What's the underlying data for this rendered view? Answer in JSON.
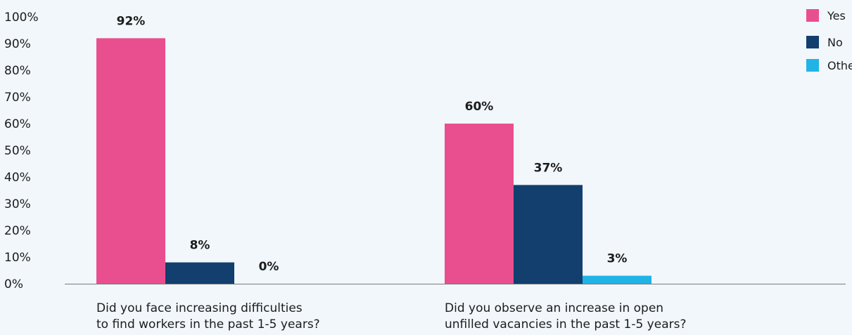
{
  "chart_data": {
    "type": "bar",
    "categories": [
      [
        "Did you face increasing difficulties",
        "to find workers in the past 1-5 years?"
      ],
      [
        "Did you observe an increase in open",
        "unfilled vacancies in the past 1-5 years?"
      ]
    ],
    "series": [
      {
        "name": "Yes",
        "values": [
          92,
          60
        ],
        "labels": [
          "92%",
          "60%"
        ],
        "color": "#e94f8e"
      },
      {
        "name": "No",
        "values": [
          8,
          37
        ],
        "labels": [
          "8%",
          "37%"
        ],
        "color": "#123f6d"
      },
      {
        "name": "Other",
        "values": [
          0,
          3
        ],
        "labels": [
          "0%",
          "3%"
        ],
        "color": "#20b4e6"
      }
    ],
    "ylim": [
      0,
      100
    ],
    "yticks": [
      0,
      10,
      20,
      30,
      40,
      50,
      60,
      70,
      80,
      90,
      100
    ],
    "ytick_labels": [
      "0%",
      "10%",
      "20%",
      "30%",
      "40%",
      "50%",
      "60%",
      "70%",
      "80%",
      "90%",
      "100%"
    ],
    "grid": false,
    "legend_position": "top-right",
    "axis_color": "#7a7a7a"
  }
}
